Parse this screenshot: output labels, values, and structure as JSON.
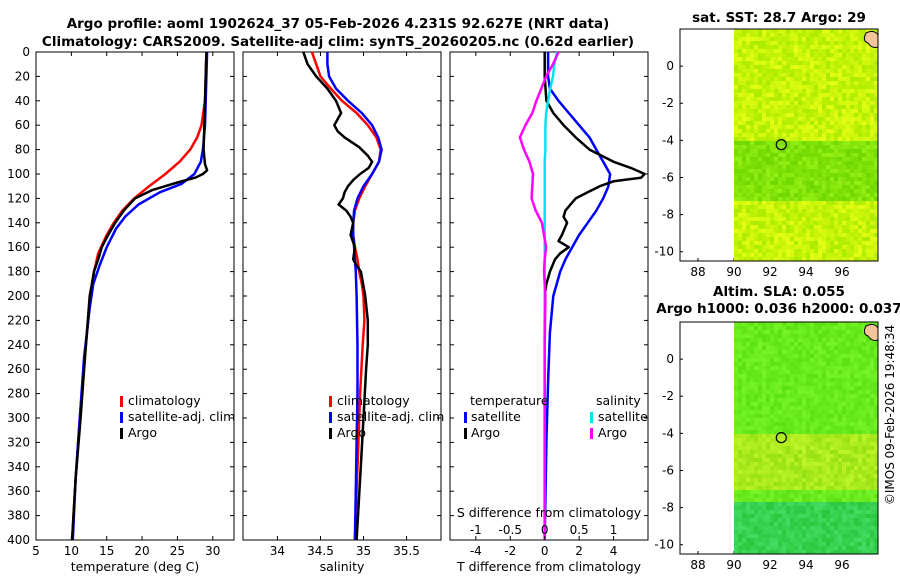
{
  "header": {
    "title_line1": "Argo profile: aoml 1902624_37 05-Feb-2026 4.231S 92.627E (NRT data)",
    "title_line2": "Climatology: CARS2009. Satellite-adj clim: synTS_20260205.nc (0.62d earlier)"
  },
  "watermark": "©IMOS 09-Feb-2026 19:48:34",
  "colors": {
    "climatology": "#ff0000",
    "satellite": "#0000ff",
    "argo": "#000000",
    "sal_satellite": "#00e5ee",
    "sal_argo": "#ff00ff",
    "map_fill": "#7cf200",
    "map_land": "#f4c49a"
  },
  "chart_data": [
    {
      "type": "line",
      "title": "",
      "xlabel": "temperature (deg C)",
      "ylabel": "",
      "xlim": [
        5,
        33
      ],
      "ylim": [
        400,
        0
      ],
      "xticks": [
        5,
        10,
        15,
        20,
        25,
        30
      ],
      "yticks": [
        0,
        20,
        40,
        60,
        80,
        100,
        120,
        140,
        160,
        180,
        200,
        220,
        240,
        260,
        280,
        300,
        320,
        340,
        360,
        380,
        400
      ],
      "legend": [
        "climatology",
        "satellite-adj. clim",
        "Argo"
      ],
      "series": [
        {
          "name": "climatology",
          "color": "#ff0000",
          "depth": [
            0,
            20,
            40,
            60,
            70,
            80,
            90,
            100,
            110,
            120,
            130,
            140,
            150,
            165,
            180,
            200,
            250,
            300,
            350,
            400
          ],
          "values": [
            29.1,
            29.0,
            28.9,
            28.4,
            27.8,
            26.8,
            25.3,
            23.3,
            21.0,
            18.9,
            17.2,
            16.0,
            15.0,
            13.8,
            13.2,
            12.7,
            11.9,
            11.2,
            10.6,
            10.1
          ]
        },
        {
          "name": "satellite-adj. clim",
          "color": "#0000ff",
          "depth": [
            0,
            20,
            40,
            60,
            80,
            90,
            100,
            108,
            115,
            125,
            135,
            145,
            160,
            175,
            190,
            210,
            250,
            300,
            350,
            400
          ],
          "values": [
            29.2,
            29.1,
            29.0,
            28.9,
            28.6,
            28.3,
            27.4,
            25.6,
            22.5,
            19.5,
            17.6,
            16.3,
            15.0,
            14.0,
            13.1,
            12.6,
            11.8,
            11.2,
            10.6,
            10.2
          ]
        },
        {
          "name": "Argo",
          "color": "#000000",
          "depth": [
            0,
            20,
            40,
            60,
            80,
            92,
            97,
            100,
            103,
            107,
            113,
            120,
            130,
            140,
            150,
            160,
            170,
            180,
            190,
            200,
            230,
            260,
            300,
            350,
            400
          ],
          "values": [
            29.1,
            29.0,
            28.9,
            28.8,
            28.7,
            28.9,
            29.2,
            28.6,
            27.5,
            25.0,
            21.5,
            19.0,
            17.4,
            16.2,
            15.2,
            14.3,
            13.8,
            13.2,
            12.9,
            12.6,
            12.2,
            11.8,
            11.3,
            10.6,
            10.1
          ]
        }
      ]
    },
    {
      "type": "line",
      "xlabel": "salinity",
      "xlim": [
        33.6,
        35.9
      ],
      "ylim": [
        400,
        0
      ],
      "xticks": [
        34,
        34.5,
        35,
        35.5
      ],
      "legend": [
        "climatology",
        "satellite-adj. clim",
        "Argo"
      ],
      "series": [
        {
          "name": "climatology",
          "color": "#ff0000",
          "depth": [
            0,
            10,
            20,
            30,
            40,
            50,
            60,
            70,
            80,
            90,
            100,
            110,
            120,
            130,
            140,
            150,
            160,
            170,
            180,
            190,
            200,
            220,
            240,
            280,
            320,
            360,
            400
          ],
          "values": [
            34.4,
            34.45,
            34.5,
            34.62,
            34.75,
            34.92,
            35.05,
            35.15,
            35.2,
            35.18,
            35.1,
            35.02,
            34.95,
            34.9,
            34.88,
            34.88,
            34.9,
            34.93,
            34.95,
            34.98,
            35.0,
            35.01,
            34.99,
            34.96,
            34.94,
            34.92,
            34.9
          ]
        },
        {
          "name": "satellite-adj. clim",
          "color": "#0000ff",
          "depth": [
            0,
            10,
            20,
            30,
            40,
            50,
            60,
            70,
            80,
            90,
            100,
            110,
            120,
            130,
            140,
            150,
            160,
            170,
            180,
            200,
            240,
            280,
            320,
            360,
            400
          ],
          "values": [
            34.58,
            34.58,
            34.6,
            34.68,
            34.82,
            34.98,
            35.1,
            35.17,
            35.21,
            35.18,
            35.1,
            35.0,
            34.93,
            34.89,
            34.88,
            34.88,
            34.89,
            34.9,
            34.91,
            34.92,
            34.93,
            34.93,
            34.92,
            34.91,
            34.9
          ]
        },
        {
          "name": "Argo",
          "color": "#000000",
          "depth": [
            0,
            10,
            20,
            30,
            40,
            50,
            55,
            60,
            65,
            70,
            78,
            85,
            90,
            95,
            100,
            105,
            110,
            115,
            120,
            125,
            130,
            135,
            140,
            150,
            160,
            170,
            175,
            180,
            200,
            220,
            240,
            260,
            300,
            350,
            400
          ],
          "values": [
            34.3,
            34.35,
            34.45,
            34.58,
            34.68,
            34.74,
            34.7,
            34.66,
            34.7,
            34.78,
            34.95,
            35.05,
            35.1,
            35.06,
            34.96,
            34.88,
            34.82,
            34.78,
            34.76,
            34.71,
            34.8,
            34.85,
            34.88,
            34.85,
            34.9,
            34.88,
            34.92,
            34.97,
            35.02,
            35.05,
            35.05,
            35.03,
            35.0,
            34.96,
            34.92
          ]
        }
      ]
    },
    {
      "type": "line",
      "xlabel": "T difference from climatology",
      "xlabel_top": "S difference from climatology",
      "xlim": [
        -5.5,
        6.0
      ],
      "ylim": [
        400,
        0
      ],
      "xticks": [
        -4,
        -2,
        0,
        2,
        4
      ],
      "xticks_S": [
        -1,
        -0.5,
        0,
        0.5,
        1
      ],
      "S_scale": 4,
      "legend_temperature_title": "temperature",
      "legend_salinity_title": "salinity",
      "legend_entries": [
        "satellite",
        "Argo",
        "satellite",
        "Argo"
      ],
      "series": [
        {
          "name": "temperature satellite",
          "color": "#0000ff",
          "depth": [
            0,
            10,
            20,
            30,
            40,
            50,
            60,
            70,
            80,
            90,
            100,
            110,
            120,
            130,
            140,
            150,
            160,
            170,
            180,
            200,
            230,
            270,
            320,
            400
          ],
          "values": [
            0.2,
            0.2,
            0.2,
            0.3,
            0.8,
            1.4,
            2.0,
            2.6,
            3.0,
            3.4,
            3.8,
            3.7,
            3.4,
            3.0,
            2.5,
            2.0,
            1.6,
            1.2,
            0.9,
            0.5,
            0.3,
            0.2,
            0.1,
            0.0
          ]
        },
        {
          "name": "temperature Argo",
          "color": "#000000",
          "depth": [
            0,
            20,
            40,
            50,
            60,
            70,
            80,
            90,
            95,
            98,
            100,
            103,
            106,
            110,
            115,
            120,
            125,
            130,
            135,
            140,
            150,
            155,
            160,
            165,
            170,
            180,
            190,
            200,
            220,
            250,
            300,
            350,
            400
          ],
          "values": [
            0.0,
            0.0,
            0.1,
            0.5,
            1.1,
            1.8,
            2.6,
            4.0,
            5.0,
            5.5,
            5.8,
            5.6,
            4.0,
            3.2,
            2.5,
            1.8,
            1.5,
            1.2,
            1.1,
            1.3,
            1.0,
            0.8,
            1.4,
            0.9,
            0.6,
            0.3,
            0.1,
            0.0,
            0.0,
            0.0,
            0.0,
            0.0,
            0.0
          ]
        },
        {
          "name": "salinity satellite",
          "color": "#00e5ee",
          "depth": [
            0,
            10,
            20,
            30,
            40,
            50,
            60,
            70,
            80,
            90,
            100,
            120,
            140,
            160,
            180,
            200,
            240,
            280,
            320,
            360,
            400
          ],
          "values": [
            0.18,
            0.14,
            0.12,
            0.08,
            0.05,
            0.02,
            0.01,
            0.01,
            0.01,
            0.0,
            0.0,
            0.0,
            0.0,
            0.0,
            0.0,
            0.0,
            0.0,
            0.0,
            0.0,
            0.0,
            0.0
          ]
        },
        {
          "name": "salinity Argo",
          "color": "#ff00ff",
          "depth": [
            0,
            10,
            20,
            30,
            40,
            50,
            60,
            70,
            80,
            90,
            100,
            110,
            120,
            130,
            140,
            150,
            160,
            170,
            180,
            200,
            240,
            280,
            320,
            360,
            400
          ],
          "values": [
            0.2,
            0.12,
            0.02,
            -0.05,
            -0.12,
            -0.18,
            -0.28,
            -0.36,
            -0.3,
            -0.22,
            -0.17,
            -0.18,
            -0.19,
            -0.13,
            -0.04,
            -0.01,
            0.02,
            0.0,
            -0.01,
            0.01,
            0.0,
            0.0,
            0.0,
            0.0,
            0.0
          ]
        }
      ]
    },
    {
      "type": "heatmap",
      "title": "sat. SST: 28.7 Argo: 29",
      "xlim": [
        87,
        98
      ],
      "ylim": [
        -10.5,
        2
      ],
      "xticks": [
        88,
        90,
        92,
        94,
        96
      ],
      "yticks": [
        0,
        -2,
        -4,
        -6,
        -8,
        -10
      ],
      "marker": {
        "lon": 92.627,
        "lat": -4.231
      }
    },
    {
      "type": "heatmap",
      "title_line1": "Altim. SLA: 0.055",
      "title_line2": "Argo h1000: 0.036 h2000: 0.037",
      "xlim": [
        87,
        98
      ],
      "ylim": [
        -10.5,
        2
      ],
      "xticks": [
        88,
        90,
        92,
        94,
        96
      ],
      "yticks": [
        0,
        -2,
        -4,
        -6,
        -8,
        -10
      ],
      "marker": {
        "lon": 92.627,
        "lat": -4.231
      }
    }
  ]
}
